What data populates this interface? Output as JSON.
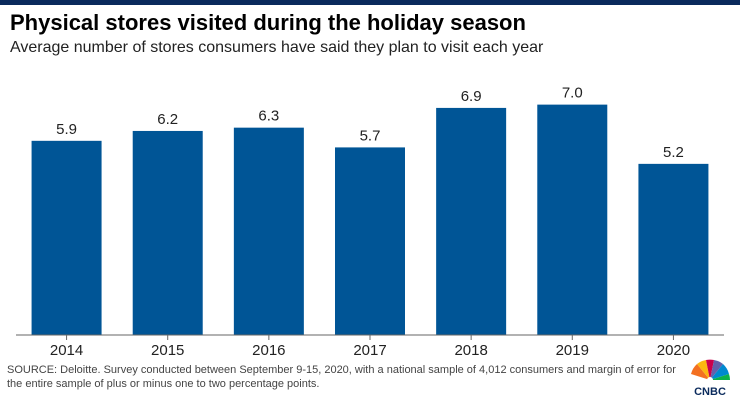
{
  "title": "Physical stores visited during the holiday season",
  "subtitle": "Average number of stores consumers have said they plan to visit each year",
  "source": "SOURCE: Deloitte. Survey conducted between September 9-15, 2020, with a national sample of 4,012 consumers and margin of error for the entire sample of plus or minus one to two percentage points.",
  "logo_text": "CNBC",
  "colors": {
    "bar": "#005596",
    "axis": "#666666",
    "brand_bar": "#0a2a5c"
  },
  "chart_data": {
    "type": "bar",
    "title": "Physical stores visited during the holiday season",
    "subtitle": "Average number of stores consumers have said they plan to visit each year",
    "categories": [
      "2014",
      "2015",
      "2016",
      "2017",
      "2018",
      "2019",
      "2020"
    ],
    "values": [
      5.9,
      6.2,
      6.3,
      5.7,
      6.9,
      7.0,
      5.2
    ],
    "value_labels": [
      "5.9",
      "6.2",
      "6.3",
      "5.7",
      "6.9",
      "7.0",
      "5.2"
    ],
    "xlabel": "",
    "ylabel": "",
    "ylim": [
      0,
      7.9
    ],
    "grid": false
  }
}
